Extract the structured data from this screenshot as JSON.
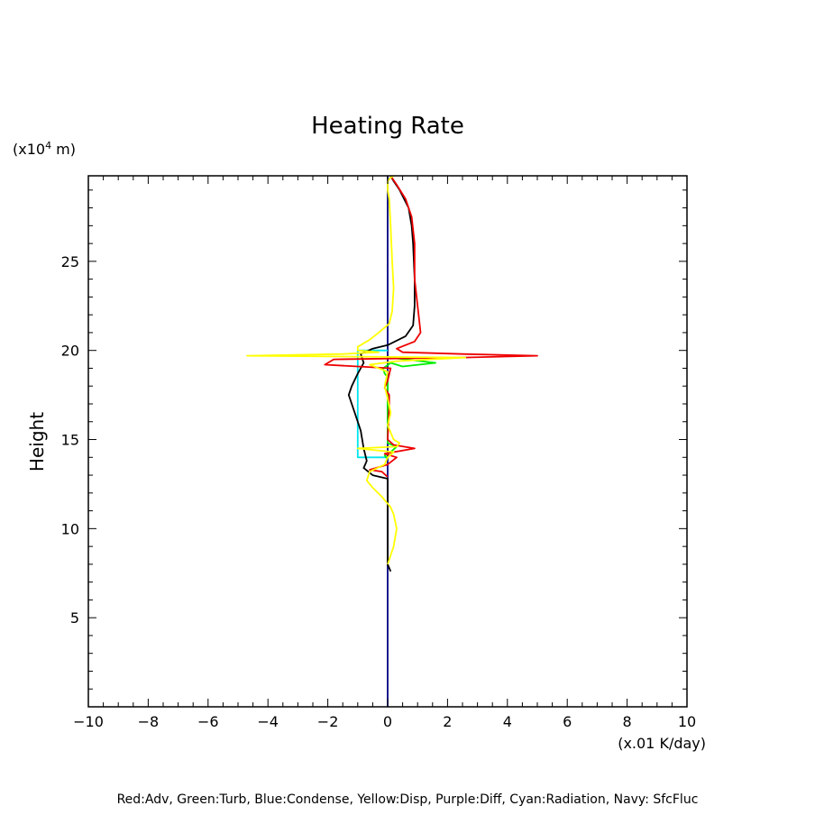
{
  "chart_data": {
    "type": "line",
    "title": "Heating Rate",
    "xlabel": "(x.01 K/day)",
    "ylabel": "Height",
    "y_unit_prefix": "(x10",
    "y_unit_exp": "4",
    "y_unit_suffix": " m)",
    "xlim": [
      -10,
      10
    ],
    "ylim": [
      0,
      29.8
    ],
    "xticks": [
      -10,
      -8,
      -6,
      -4,
      -2,
      0,
      2,
      4,
      6,
      8,
      10
    ],
    "yticks": [
      5,
      10,
      15,
      20,
      25
    ],
    "footnote": "Red:Adv, Green:Turb, Blue:Condense, Yellow:Disp, Purple:Diff, Cyan:Radiation, Navy: SfcFluc",
    "grid": false,
    "series": [
      {
        "name": "Navy",
        "color": "#000080",
        "points": [
          [
            0.0,
            0.0
          ],
          [
            0.0,
            29.8
          ]
        ]
      },
      {
        "name": "Cyan",
        "color": "#00e5ee",
        "points": [
          [
            0.0,
            14.0
          ],
          [
            -1.0,
            14.0
          ],
          [
            -1.0,
            20.0
          ],
          [
            0.0,
            20.0
          ]
        ]
      },
      {
        "name": "Green",
        "color": "#00ee00",
        "points": [
          [
            0.0,
            19.6
          ],
          [
            0.6,
            19.5
          ],
          [
            1.6,
            19.3
          ],
          [
            0.5,
            19.1
          ],
          [
            0.1,
            19.3
          ],
          [
            -0.15,
            19.0
          ],
          [
            -0.1,
            18.7
          ],
          [
            0.0,
            18.5
          ],
          [
            0.0,
            14.8
          ],
          [
            0.3,
            14.6
          ],
          [
            0.1,
            14.3
          ],
          [
            -0.1,
            14.1
          ],
          [
            0.0,
            13.9
          ]
        ]
      },
      {
        "name": "Black",
        "color": "#000000",
        "points": [
          [
            0.1,
            7.6
          ],
          [
            0.0,
            8.0
          ],
          [
            0.0,
            12.8
          ],
          [
            -0.5,
            13.0
          ],
          [
            -0.8,
            13.4
          ],
          [
            -0.7,
            13.8
          ],
          [
            -0.8,
            14.5
          ],
          [
            -0.9,
            15.5
          ],
          [
            -1.1,
            16.5
          ],
          [
            -1.3,
            17.5
          ],
          [
            -1.2,
            18.0
          ],
          [
            -1.0,
            18.7
          ],
          [
            -0.8,
            19.3
          ],
          [
            -0.9,
            19.8
          ],
          [
            -0.5,
            20.1
          ],
          [
            0.0,
            20.3
          ],
          [
            0.6,
            20.8
          ],
          [
            0.85,
            21.4
          ],
          [
            0.9,
            22.5
          ],
          [
            0.9,
            24.0
          ],
          [
            0.85,
            26.0
          ],
          [
            0.8,
            27.0
          ],
          [
            0.7,
            28.0
          ],
          [
            0.4,
            29.0
          ],
          [
            0.2,
            29.5
          ],
          [
            0.1,
            29.8
          ]
        ]
      },
      {
        "name": "Red",
        "color": "#ee0000",
        "points": [
          [
            0.0,
            12.9
          ],
          [
            -0.2,
            13.2
          ],
          [
            -0.6,
            13.3
          ],
          [
            0.0,
            13.6
          ],
          [
            0.3,
            14.0
          ],
          [
            -0.1,
            14.2
          ],
          [
            0.9,
            14.5
          ],
          [
            0.2,
            14.7
          ],
          [
            0.0,
            15.0
          ],
          [
            0.05,
            16.8
          ],
          [
            0.05,
            17.5
          ],
          [
            -0.1,
            17.9
          ],
          [
            0.0,
            18.3
          ],
          [
            0.1,
            19.0
          ],
          [
            -2.1,
            19.2
          ],
          [
            -1.8,
            19.5
          ],
          [
            2.5,
            19.6
          ],
          [
            5.0,
            19.7
          ],
          [
            2.5,
            19.8
          ],
          [
            0.5,
            19.9
          ],
          [
            0.3,
            20.1
          ],
          [
            0.9,
            20.5
          ],
          [
            1.1,
            21.0
          ],
          [
            1.0,
            22.5
          ],
          [
            0.9,
            24.0
          ],
          [
            0.9,
            26.0
          ],
          [
            0.8,
            27.5
          ],
          [
            0.6,
            28.5
          ],
          [
            0.3,
            29.3
          ],
          [
            0.1,
            29.8
          ]
        ]
      },
      {
        "name": "Yellow",
        "color": "#ffff00",
        "points": [
          [
            0.0,
            8.0
          ],
          [
            0.1,
            8.5
          ],
          [
            0.2,
            9.0
          ],
          [
            0.3,
            10.0
          ],
          [
            0.2,
            10.8
          ],
          [
            0.1,
            11.2
          ],
          [
            -0.2,
            11.8
          ],
          [
            -0.5,
            12.3
          ],
          [
            -0.7,
            12.7
          ],
          [
            -0.6,
            13.2
          ],
          [
            -0.1,
            13.6
          ],
          [
            0.0,
            14.0
          ],
          [
            0.2,
            14.3
          ],
          [
            -1.0,
            14.5
          ],
          [
            0.3,
            14.6
          ],
          [
            0.4,
            14.8
          ],
          [
            0.2,
            15.0
          ],
          [
            0.0,
            15.8
          ],
          [
            0.1,
            16.5
          ],
          [
            0.0,
            17.3
          ],
          [
            -0.1,
            18.0
          ],
          [
            0.0,
            18.8
          ],
          [
            -0.6,
            19.2
          ],
          [
            0.3,
            19.4
          ],
          [
            2.6,
            19.6
          ],
          [
            -4.7,
            19.7
          ],
          [
            -1.5,
            19.8
          ],
          [
            -0.3,
            19.9
          ],
          [
            -1.0,
            20.0
          ],
          [
            -1.0,
            20.2
          ],
          [
            -0.6,
            20.6
          ],
          [
            -0.3,
            21.0
          ],
          [
            0.05,
            21.5
          ],
          [
            0.15,
            22.2
          ],
          [
            0.2,
            23.5
          ],
          [
            0.15,
            25.0
          ],
          [
            0.1,
            27.0
          ],
          [
            0.05,
            28.5
          ],
          [
            0.0,
            29.0
          ],
          [
            0.0,
            29.5
          ],
          [
            0.1,
            29.7
          ],
          [
            0.2,
            29.8
          ]
        ]
      }
    ]
  }
}
